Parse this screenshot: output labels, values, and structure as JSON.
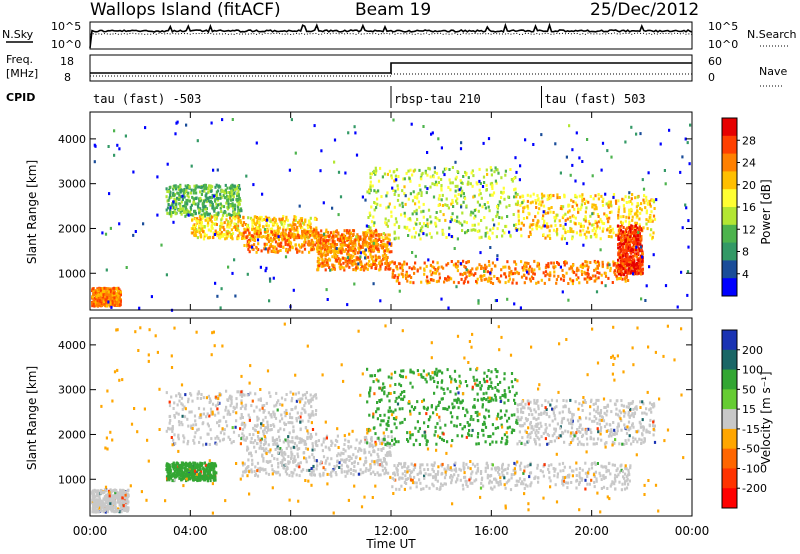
{
  "header": {
    "title": "Wallops Island (fitACF)",
    "beam": "Beam 19",
    "date": "25/Dec/2012"
  },
  "panel_labels": {
    "nsky": "N.Sky",
    "nsearch": "N.Search",
    "freq_line1": "Freq.",
    "freq_line2": "[MHz]",
    "nave": "Nave",
    "cpid": "CPID"
  },
  "nsky_axis": {
    "top": "10^5",
    "bottom": "10^0"
  },
  "nsearch_axis": {
    "top": "10^5",
    "bottom": "10^0"
  },
  "freq_axis": {
    "top": "18",
    "bottom": "8"
  },
  "nave_axis": {
    "top": "60",
    "bottom": "0"
  },
  "cpid_segments": [
    {
      "label": "tau (fast) -503",
      "start_hour": 0
    },
    {
      "label": "rbsp-tau 210",
      "start_hour": 12
    },
    {
      "label": "tau (fast) 503",
      "start_hour": 18
    }
  ],
  "power_colorbar": {
    "title": "Power [dB]",
    "ticks": [
      "28",
      "24",
      "20",
      "16",
      "12",
      "8",
      "4"
    ],
    "colors": [
      "#e60000",
      "#ff4000",
      "#ff8000",
      "#ffbf00",
      "#ffff33",
      "#b3e633",
      "#4db34d",
      "#339966",
      "#1a4d99",
      "#0000ff"
    ]
  },
  "velocity_colorbar": {
    "title": "Velocity [m s⁻¹]",
    "ticks": [
      "200",
      "100",
      "50",
      "15",
      "-15",
      "-50",
      "-100",
      "-200"
    ],
    "colors": [
      "#1a33b3",
      "#1a6666",
      "#33a633",
      "#66cc33",
      "#c8c8c8",
      "#ffa600",
      "#ff6600",
      "#ff3300",
      "#ff0000"
    ]
  },
  "chart_data": [
    {
      "type": "heatmap",
      "name": "power",
      "ylabel": "Slant Range [km]",
      "xlim_hours": [
        0,
        24
      ],
      "ylim_km": [
        180,
        4600
      ],
      "yticks": [
        1000,
        2000,
        3000,
        4000
      ],
      "scatter_bands": [
        {
          "start": 0.0,
          "end": 1.2,
          "y1": 300,
          "y2": 700,
          "value": 24
        },
        {
          "start": 3.0,
          "end": 6.0,
          "y1": 2300,
          "y2": 3000,
          "value": 12
        },
        {
          "start": 4.0,
          "end": 9.0,
          "y1": 1800,
          "y2": 2300,
          "value": 20
        },
        {
          "start": 6.0,
          "end": 11.5,
          "y1": 1500,
          "y2": 2000,
          "value": 24
        },
        {
          "start": 9.0,
          "end": 12.0,
          "y1": 1100,
          "y2": 1900,
          "value": 24
        },
        {
          "start": 12.0,
          "end": 21.5,
          "y1": 800,
          "y2": 1300,
          "value": 24
        },
        {
          "start": 11.0,
          "end": 17.0,
          "y1": 1800,
          "y2": 3400,
          "value": 16
        },
        {
          "start": 17.0,
          "end": 22.5,
          "y1": 1800,
          "y2": 2800,
          "value": 20
        },
        {
          "start": 21.0,
          "end": 22.0,
          "y1": 1000,
          "y2": 2100,
          "value": 28
        },
        {
          "start": 0.0,
          "end": 24.0,
          "y1": 200,
          "y2": 4500,
          "value": 4
        }
      ]
    },
    {
      "type": "heatmap",
      "name": "velocity",
      "xlabel": "Time UT",
      "ylabel": "Slant Range [km]",
      "xlim_hours": [
        0,
        24
      ],
      "ylim_km": [
        180,
        4600
      ],
      "yticks": [
        1000,
        2000,
        3000,
        4000
      ],
      "xtick_labels": [
        "00:00",
        "04:00",
        "08:00",
        "12:00",
        "16:00",
        "20:00",
        "00:00"
      ],
      "xtick_hours": [
        0,
        4,
        8,
        12,
        16,
        20,
        24
      ],
      "scatter_bands": [
        {
          "start": 0.0,
          "end": 1.5,
          "y1": 300,
          "y2": 800,
          "value": 0
        },
        {
          "start": 3.0,
          "end": 9.0,
          "y1": 1800,
          "y2": 3000,
          "value": 0
        },
        {
          "start": 6.0,
          "end": 12.0,
          "y1": 1100,
          "y2": 2000,
          "value": 0
        },
        {
          "start": 12.0,
          "end": 21.5,
          "y1": 800,
          "y2": 1400,
          "value": 0
        },
        {
          "start": 11.0,
          "end": 17.0,
          "y1": 1800,
          "y2": 3500,
          "value": 30
        },
        {
          "start": 3.0,
          "end": 5.0,
          "y1": 1000,
          "y2": 1400,
          "value": 30
        },
        {
          "start": 17.0,
          "end": 22.5,
          "y1": 1800,
          "y2": 2800,
          "value": 0
        },
        {
          "start": 0.0,
          "end": 24.0,
          "y1": 200,
          "y2": 4500,
          "value": -40
        }
      ]
    }
  ]
}
